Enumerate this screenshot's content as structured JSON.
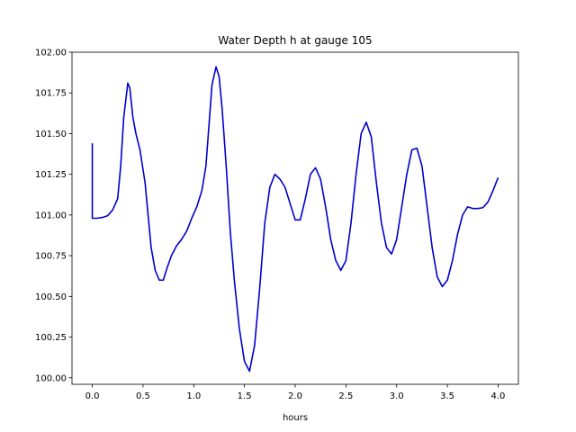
{
  "chart_data": {
    "type": "line",
    "title": "Water Depth h at gauge 105",
    "xlabel": "hours",
    "ylabel": "",
    "xlim": [
      -0.2,
      4.2
    ],
    "ylim": [
      99.96,
      102.0
    ],
    "x_ticks": [
      0.0,
      0.5,
      1.0,
      1.5,
      2.0,
      2.5,
      3.0,
      3.5,
      4.0
    ],
    "x_tick_labels": [
      "0.0",
      "0.5",
      "1.0",
      "1.5",
      "2.0",
      "2.5",
      "3.0",
      "3.5",
      "4.0"
    ],
    "y_ticks": [
      100.0,
      100.25,
      100.5,
      100.75,
      101.0,
      101.25,
      101.5,
      101.75,
      102.0
    ],
    "y_tick_labels": [
      "100.00",
      "100.25",
      "100.50",
      "100.75",
      "101.00",
      "101.25",
      "101.50",
      "101.75",
      "102.00"
    ],
    "grid": false,
    "series": [
      {
        "color": "#0000cc",
        "points": [
          [
            0.0,
            101.44
          ],
          [
            0.0,
            100.98
          ],
          [
            0.05,
            100.98
          ],
          [
            0.1,
            100.985
          ],
          [
            0.15,
            100.995
          ],
          [
            0.2,
            101.03
          ],
          [
            0.25,
            101.1
          ],
          [
            0.28,
            101.3
          ],
          [
            0.31,
            101.6
          ],
          [
            0.35,
            101.81
          ],
          [
            0.37,
            101.78
          ],
          [
            0.4,
            101.6
          ],
          [
            0.43,
            101.5
          ],
          [
            0.47,
            101.4
          ],
          [
            0.52,
            101.2
          ],
          [
            0.55,
            101.0
          ],
          [
            0.58,
            100.8
          ],
          [
            0.62,
            100.66
          ],
          [
            0.66,
            100.6
          ],
          [
            0.7,
            100.6
          ],
          [
            0.74,
            100.68
          ],
          [
            0.78,
            100.75
          ],
          [
            0.83,
            100.81
          ],
          [
            0.88,
            100.85
          ],
          [
            0.93,
            100.9
          ],
          [
            0.98,
            100.98
          ],
          [
            1.03,
            101.05
          ],
          [
            1.08,
            101.15
          ],
          [
            1.12,
            101.3
          ],
          [
            1.15,
            101.55
          ],
          [
            1.18,
            101.8
          ],
          [
            1.22,
            101.91
          ],
          [
            1.25,
            101.85
          ],
          [
            1.28,
            101.65
          ],
          [
            1.32,
            101.3
          ],
          [
            1.36,
            100.9
          ],
          [
            1.4,
            100.6
          ],
          [
            1.45,
            100.3
          ],
          [
            1.5,
            100.1
          ],
          [
            1.55,
            100.04
          ],
          [
            1.6,
            100.2
          ],
          [
            1.65,
            100.55
          ],
          [
            1.7,
            100.95
          ],
          [
            1.75,
            101.17
          ],
          [
            1.8,
            101.25
          ],
          [
            1.85,
            101.22
          ],
          [
            1.9,
            101.17
          ],
          [
            1.95,
            101.07
          ],
          [
            2.0,
            100.97
          ],
          [
            2.05,
            100.97
          ],
          [
            2.1,
            101.1
          ],
          [
            2.15,
            101.25
          ],
          [
            2.2,
            101.29
          ],
          [
            2.25,
            101.22
          ],
          [
            2.3,
            101.05
          ],
          [
            2.35,
            100.85
          ],
          [
            2.4,
            100.72
          ],
          [
            2.45,
            100.66
          ],
          [
            2.5,
            100.72
          ],
          [
            2.55,
            100.95
          ],
          [
            2.6,
            101.25
          ],
          [
            2.65,
            101.5
          ],
          [
            2.7,
            101.57
          ],
          [
            2.75,
            101.48
          ],
          [
            2.8,
            101.2
          ],
          [
            2.85,
            100.95
          ],
          [
            2.9,
            100.8
          ],
          [
            2.95,
            100.76
          ],
          [
            3.0,
            100.85
          ],
          [
            3.05,
            101.05
          ],
          [
            3.1,
            101.25
          ],
          [
            3.15,
            101.4
          ],
          [
            3.2,
            101.41
          ],
          [
            3.25,
            101.3
          ],
          [
            3.3,
            101.05
          ],
          [
            3.35,
            100.8
          ],
          [
            3.4,
            100.62
          ],
          [
            3.45,
            100.56
          ],
          [
            3.5,
            100.6
          ],
          [
            3.55,
            100.72
          ],
          [
            3.6,
            100.88
          ],
          [
            3.65,
            101.0
          ],
          [
            3.7,
            101.05
          ],
          [
            3.75,
            101.04
          ],
          [
            3.8,
            101.04
          ],
          [
            3.85,
            101.045
          ],
          [
            3.9,
            101.08
          ],
          [
            3.95,
            101.15
          ],
          [
            4.0,
            101.23
          ]
        ]
      }
    ]
  }
}
